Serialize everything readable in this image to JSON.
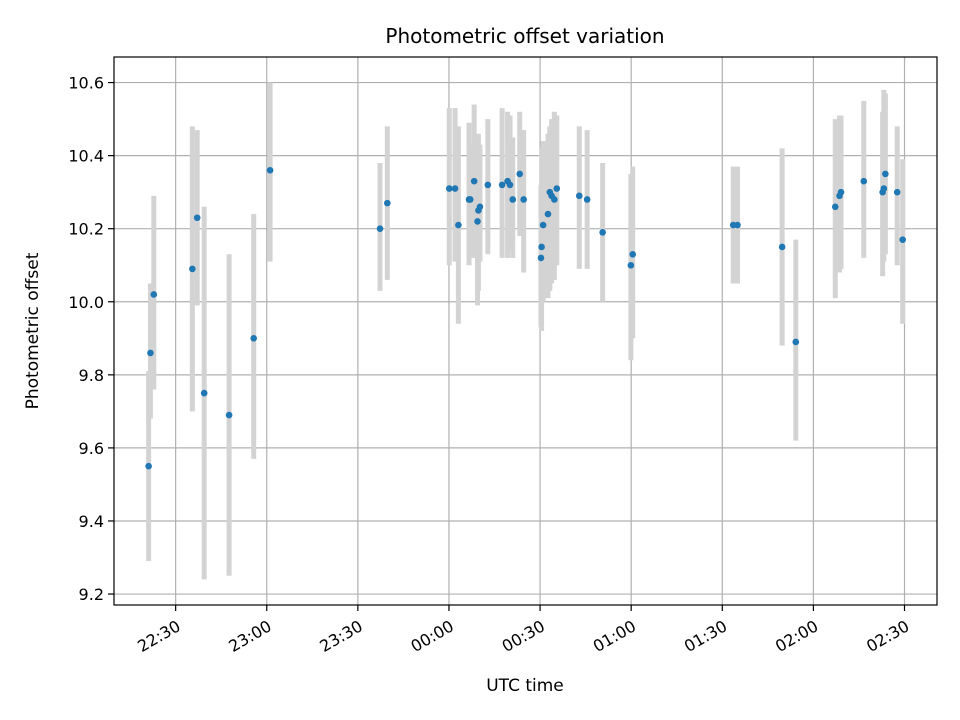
{
  "chart_data": {
    "type": "scatter",
    "title": "Photometric offset variation",
    "xlabel": "UTC time",
    "ylabel": "Photometric offset",
    "x_tick_labels": [
      "22:30",
      "23:00",
      "23:30",
      "00:00",
      "00:30",
      "01:00",
      "01:30",
      "02:00",
      "02:30"
    ],
    "x_tick_minutes": [
      -90,
      -60,
      -30,
      0,
      30,
      60,
      90,
      120,
      150
    ],
    "y_ticks": [
      9.2,
      9.4,
      9.6,
      9.8,
      10.0,
      10.2,
      10.4,
      10.6
    ],
    "y_tick_labels": [
      "9.2",
      "9.4",
      "9.6",
      "9.8",
      "10.0",
      "10.2",
      "10.4",
      "10.6"
    ],
    "xlim_minutes": [
      -110.3,
      160.7
    ],
    "ylim": [
      9.17,
      10.67
    ],
    "grid": true,
    "colors": {
      "point": "#1f77b4",
      "errorbar": "#d3d3d3",
      "grid": "#b0b0b0"
    },
    "series": [
      {
        "x_minutes": [
          -98.9,
          -98.3,
          -97.2,
          -84.5,
          -82.9,
          -80.6,
          -72.4,
          -64.3,
          -58.9,
          -22.7,
          -20.3,
          0.1,
          2.0,
          3.1,
          6.6,
          7.0,
          8.3,
          9.4,
          9.7,
          10.2,
          12.8,
          17.5,
          19.3,
          20.1,
          21.0,
          23.3,
          24.6,
          30.3,
          30.5,
          31.0,
          32.6,
          33.2,
          33.8,
          34.7,
          35.5,
          42.9,
          45.5,
          50.6,
          59.9,
          60.5,
          93.6,
          95.0,
          109.7,
          114.2,
          127.2,
          128.6,
          129.1,
          136.6,
          142.8,
          143.2,
          143.7,
          147.6,
          149.4
        ],
        "y": [
          9.55,
          9.86,
          10.02,
          10.09,
          10.23,
          9.75,
          9.69,
          9.9,
          10.36,
          10.2,
          10.27,
          10.31,
          10.31,
          10.21,
          10.28,
          10.28,
          10.33,
          10.22,
          10.25,
          10.26,
          10.32,
          10.32,
          10.33,
          10.32,
          10.28,
          10.35,
          10.28,
          10.12,
          10.15,
          10.21,
          10.24,
          10.3,
          10.29,
          10.28,
          10.31,
          10.29,
          10.28,
          10.19,
          10.1,
          10.13,
          10.21,
          10.21,
          10.15,
          9.89,
          10.26,
          10.29,
          10.3,
          10.33,
          10.3,
          10.31,
          10.35,
          10.3,
          10.17
        ],
        "yerr_low": [
          9.29,
          9.68,
          9.76,
          9.7,
          9.99,
          9.24,
          9.25,
          9.57,
          10.11,
          10.03,
          10.06,
          10.1,
          10.11,
          9.94,
          10.1,
          10.12,
          10.12,
          9.99,
          10.03,
          10.11,
          10.13,
          10.12,
          10.12,
          10.14,
          10.12,
          10.18,
          10.08,
          9.93,
          9.92,
          10.0,
          10.01,
          10.03,
          10.05,
          10.06,
          10.1,
          10.09,
          10.09,
          10.0,
          9.84,
          9.9,
          10.05,
          10.05,
          9.88,
          9.62,
          10.01,
          10.08,
          10.09,
          10.12,
          10.07,
          10.11,
          10.13,
          10.1,
          9.94
        ],
        "yerr_high": [
          9.81,
          10.05,
          10.29,
          10.48,
          10.47,
          10.26,
          10.13,
          10.24,
          10.6,
          10.38,
          10.48,
          10.53,
          10.53,
          10.48,
          10.49,
          10.43,
          10.54,
          10.45,
          10.46,
          10.43,
          10.5,
          10.53,
          10.52,
          10.51,
          10.45,
          10.52,
          10.47,
          10.32,
          10.42,
          10.44,
          10.46,
          10.48,
          10.5,
          10.52,
          10.51,
          10.48,
          10.47,
          10.38,
          10.35,
          10.37,
          10.37,
          10.37,
          10.42,
          10.17,
          10.5,
          10.51,
          10.51,
          10.55,
          10.52,
          10.58,
          10.57,
          10.48,
          10.39
        ]
      }
    ]
  }
}
